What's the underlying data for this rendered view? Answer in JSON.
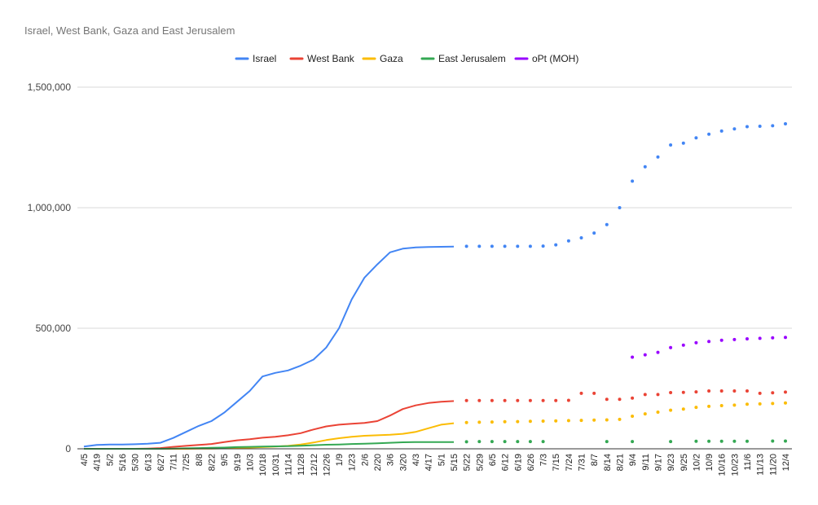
{
  "chart_data": {
    "type": "line",
    "title": "Israel, West Bank, Gaza and East Jerusalem",
    "xlabel": "",
    "ylabel": "",
    "ylim": [
      0,
      1500000
    ],
    "yticks": [
      0,
      500000,
      1000000,
      1500000
    ],
    "ytick_labels": [
      "0",
      "500,000",
      "1,000,000",
      "1,500,000"
    ],
    "grid": true,
    "legend_position": "top",
    "categories": [
      "4/5",
      "4/19",
      "5/2",
      "5/16",
      "5/30",
      "6/13",
      "6/27",
      "7/11",
      "7/25",
      "8/8",
      "8/22",
      "9/5",
      "9/19",
      "10/3",
      "10/18",
      "10/31",
      "11/14",
      "11/28",
      "12/12",
      "12/26",
      "1/9",
      "1/23",
      "2/6",
      "2/20",
      "3/6",
      "3/20",
      "4/3",
      "4/17",
      "5/1",
      "5/15",
      "5/22",
      "5/29",
      "6/5",
      "6/12",
      "6/19",
      "6/26",
      "7/3",
      "7/15",
      "7/24",
      "7/31",
      "8/7",
      "8/14",
      "8/21",
      "9/4",
      "9/11",
      "9/17",
      "9/23",
      "9/25",
      "10/2",
      "10/9",
      "10/16",
      "10/23",
      "11/6",
      "11/13",
      "11/20",
      "12/4"
    ],
    "series": [
      {
        "name": "Israel",
        "color": "#4285F4",
        "values": [
          9000,
          16000,
          18000,
          18000,
          19000,
          21000,
          25000,
          45000,
          70000,
          95000,
          115000,
          150000,
          195000,
          240000,
          300000,
          315000,
          325000,
          345000,
          370000,
          420000,
          500000,
          620000,
          710000,
          765000,
          815000,
          830000,
          835000,
          837000,
          838000,
          839000,
          840000,
          840000,
          840000,
          840000,
          840000,
          840000,
          841000,
          846000,
          862000,
          875000,
          895000,
          930000,
          1000000,
          1110000,
          1170000,
          1210000,
          1260000,
          1268000,
          1290000,
          1305000,
          1318000,
          1327000,
          1336000,
          1338000,
          1340000,
          1348000
        ]
      },
      {
        "name": "West Bank",
        "color": "#EA4335",
        "values": [
          0,
          0,
          0,
          0,
          0,
          1000,
          3000,
          8000,
          12000,
          16000,
          20000,
          28000,
          35000,
          40000,
          46000,
          50000,
          56000,
          65000,
          80000,
          93000,
          100000,
          104000,
          107000,
          115000,
          138000,
          165000,
          180000,
          190000,
          195000,
          198000,
          200000,
          200000,
          200000,
          200000,
          200000,
          200000,
          200000,
          200000,
          201000,
          230000,
          230000,
          205000,
          205000,
          210000,
          225000,
          225000,
          233000,
          234000,
          236000,
          240000,
          240000,
          240000,
          240000,
          230000,
          232000,
          235000
        ]
      },
      {
        "name": "Gaza",
        "color": "#FBBC04",
        "values": [
          0,
          0,
          0,
          0,
          0,
          0,
          0,
          0,
          0,
          1000,
          1000,
          2000,
          3000,
          5000,
          7000,
          9000,
          12000,
          18000,
          26000,
          36000,
          44000,
          50000,
          54000,
          56000,
          58000,
          62000,
          70000,
          85000,
          100000,
          106000,
          109000,
          110000,
          111000,
          112000,
          113000,
          114000,
          115000,
          116000,
          117000,
          118000,
          119000,
          120000,
          122000,
          135000,
          145000,
          152000,
          160000,
          165000,
          172000,
          176000,
          179000,
          181000,
          185000,
          186000,
          188000,
          190000
        ]
      },
      {
        "name": "East Jerusalem",
        "color": "#34A853",
        "values": [
          0,
          0,
          0,
          0,
          0,
          0,
          0,
          1000,
          2000,
          3000,
          4000,
          5000,
          7000,
          8000,
          9000,
          10000,
          11000,
          13000,
          15000,
          17000,
          18000,
          20000,
          21000,
          23000,
          25000,
          27000,
          28000,
          28000,
          28000,
          28000,
          29000,
          30000,
          30000,
          30000,
          30000,
          30000,
          30000,
          null,
          null,
          null,
          null,
          30000,
          null,
          30000,
          null,
          null,
          30000,
          null,
          31000,
          31000,
          31000,
          31000,
          31000,
          null,
          32000,
          32000
        ]
      },
      {
        "name": "oPt (MOH)",
        "color": "#9900FF",
        "values": [
          null,
          null,
          null,
          null,
          null,
          null,
          null,
          null,
          null,
          null,
          null,
          null,
          null,
          null,
          null,
          null,
          null,
          null,
          null,
          null,
          null,
          null,
          null,
          null,
          null,
          null,
          null,
          null,
          null,
          null,
          null,
          null,
          null,
          null,
          null,
          null,
          null,
          null,
          null,
          null,
          null,
          null,
          null,
          380000,
          390000,
          400000,
          420000,
          430000,
          440000,
          445000,
          450000,
          453000,
          456000,
          458000,
          460000,
          462000
        ]
      }
    ]
  }
}
